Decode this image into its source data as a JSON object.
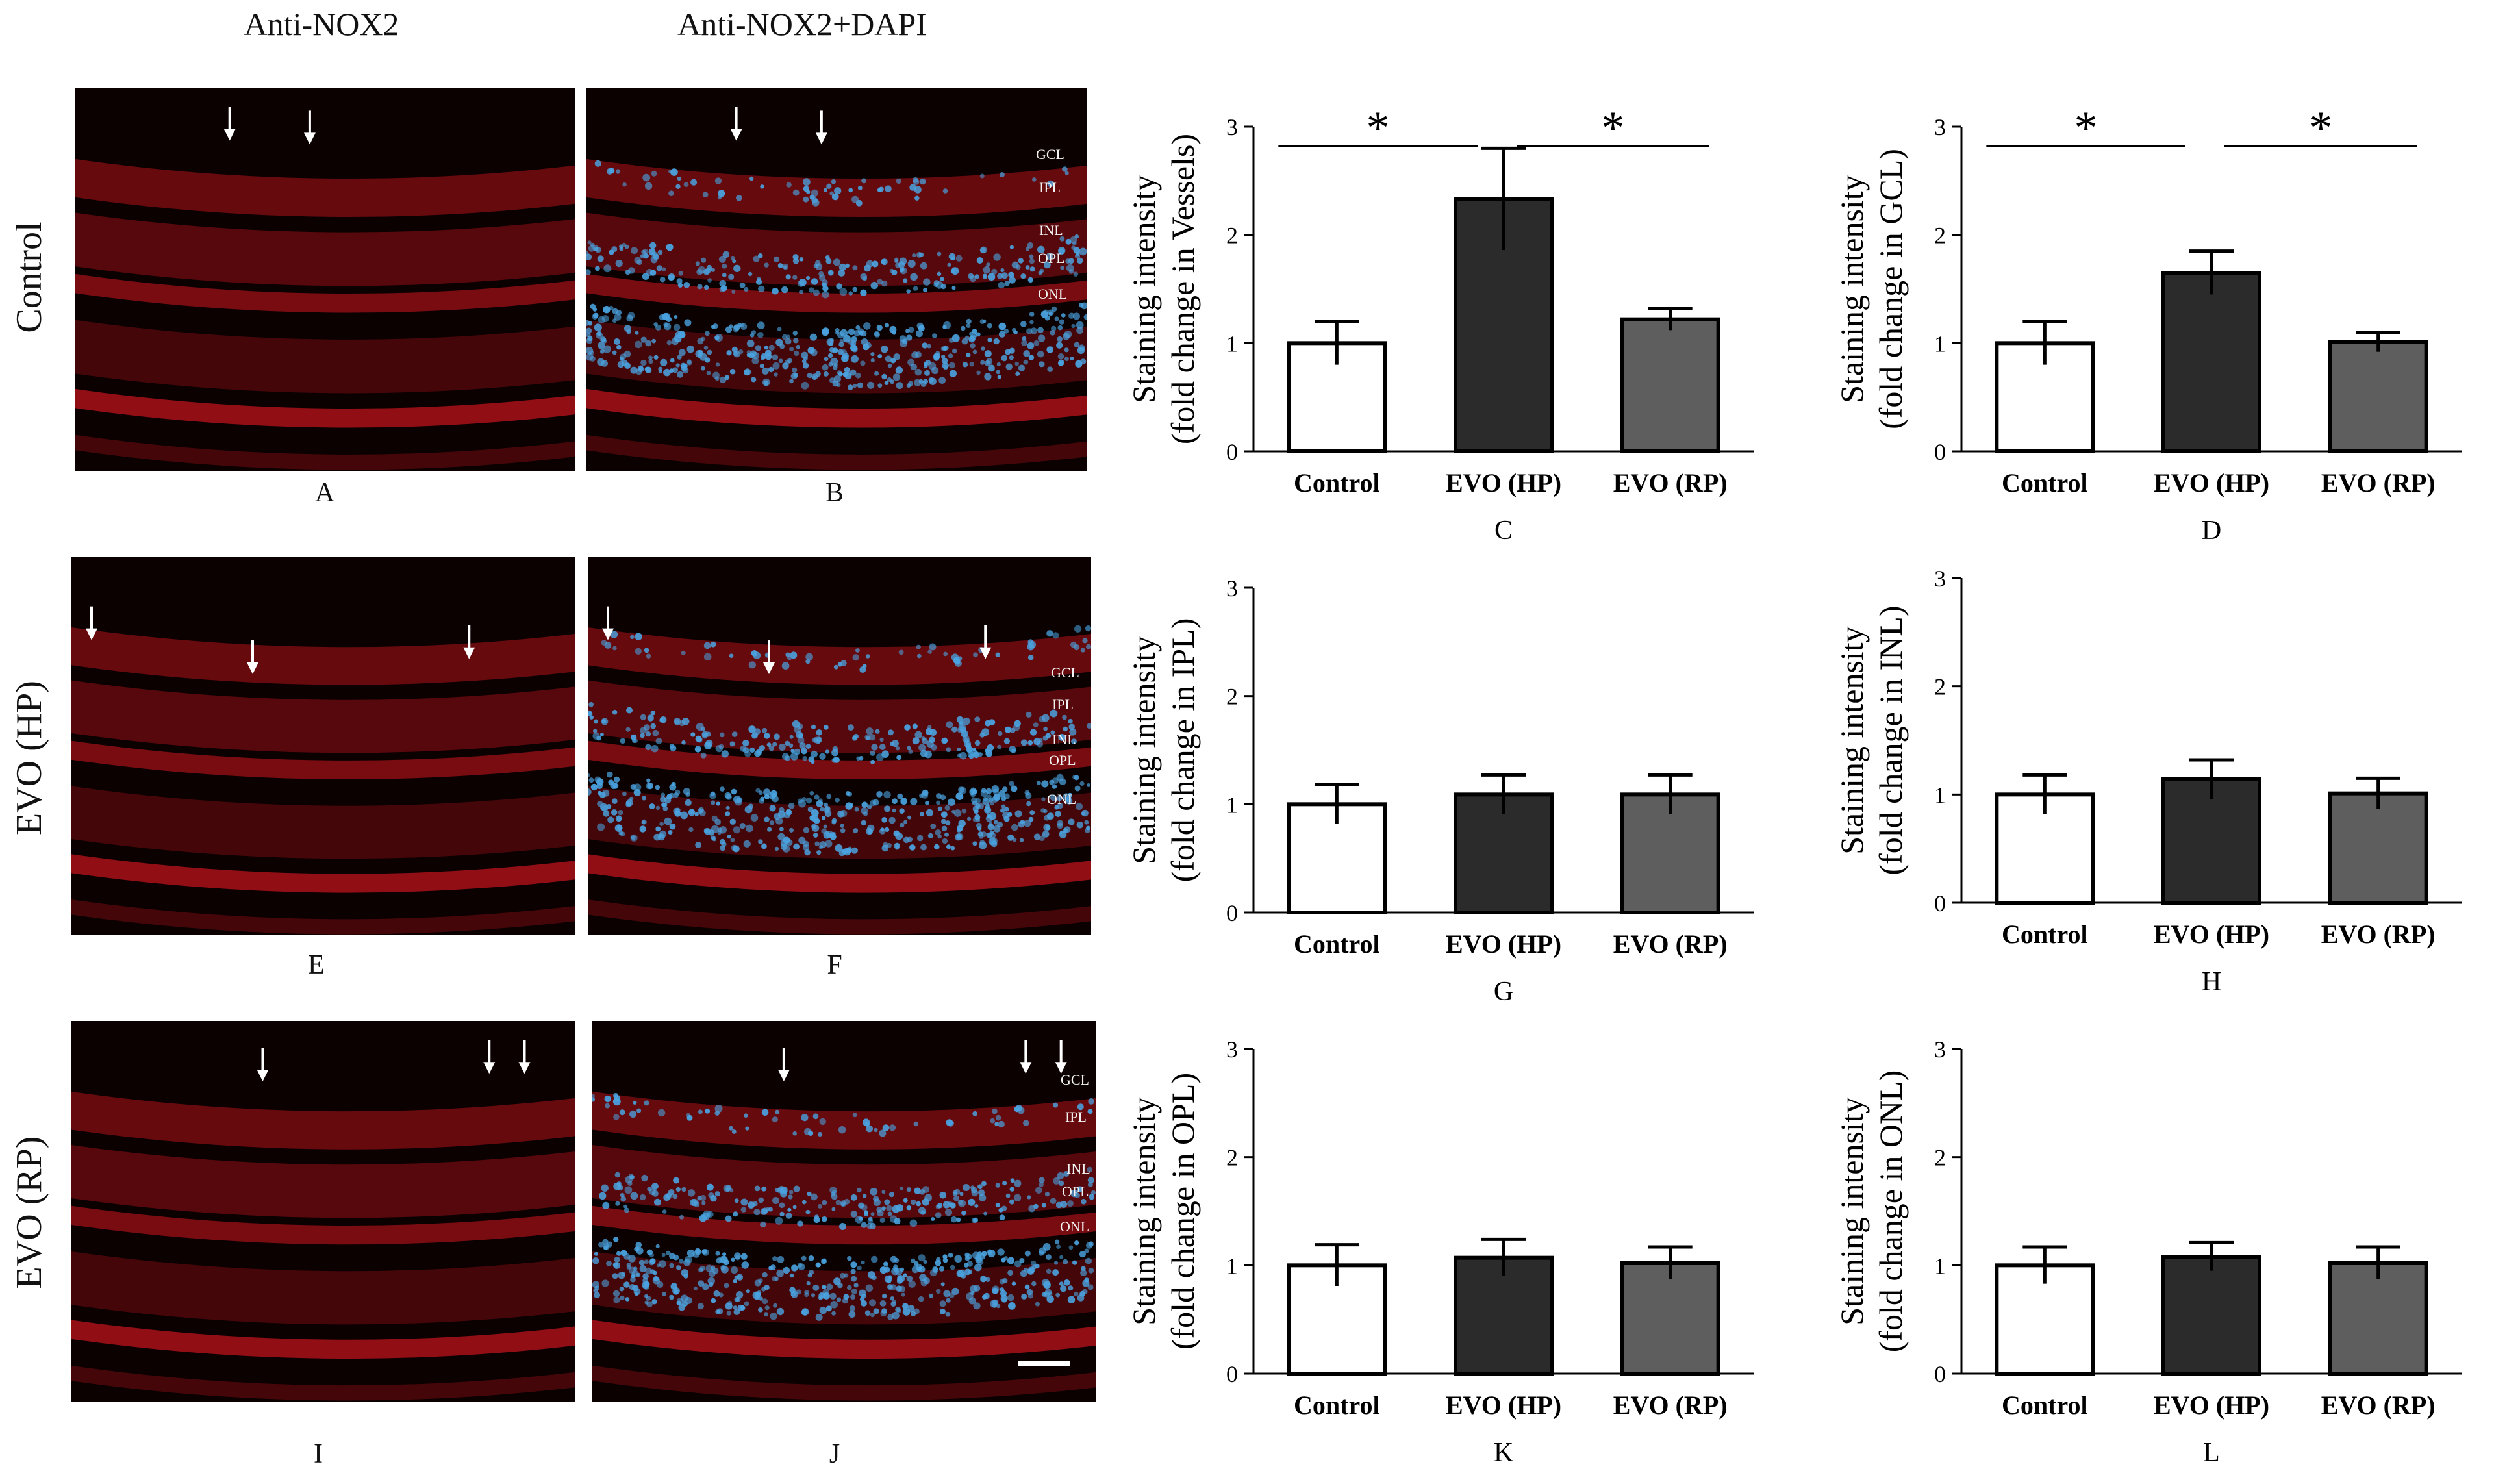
{
  "column_headers": [
    "Anti-NOX2",
    "Anti-NOX2+DAPI"
  ],
  "row_labels": [
    "Control",
    "EVO (HP)",
    "EVO (RP)"
  ],
  "micro_panels": [
    {
      "letter": "A",
      "dapi": false
    },
    {
      "letter": "B",
      "dapi": true
    },
    {
      "letter": "E",
      "dapi": false
    },
    {
      "letter": "F",
      "dapi": true
    },
    {
      "letter": "I",
      "dapi": false
    },
    {
      "letter": "J",
      "dapi": true
    }
  ],
  "layer_labels": [
    "GCL",
    "IPL",
    "INL",
    "OPL",
    "ONL"
  ],
  "colors": {
    "control_bar": "#ffffff",
    "hp_bar": "#2b2b2b",
    "rp_bar": "#5e5e5e",
    "nox2_red": "#b3121a",
    "dapi_blue": "#4aa3e0"
  },
  "chart_data": [
    {
      "type": "bar",
      "letter": "C",
      "categories": [
        "Control",
        "EVO (HP)",
        "EVO (RP)"
      ],
      "values": [
        1.0,
        2.33,
        1.22
      ],
      "errors": [
        0.2,
        0.47,
        0.1
      ],
      "ylabel_line1": "Staining intensity",
      "ylabel_line2": "(fold change in Vessels)",
      "ylim": [
        0,
        3
      ],
      "yticks": [
        "0",
        "1",
        "2",
        "3"
      ],
      "significance": [
        {
          "from": 0,
          "to": 1,
          "label": "*"
        },
        {
          "from": 1,
          "to": 2,
          "label": "*"
        }
      ]
    },
    {
      "type": "bar",
      "letter": "D",
      "categories": [
        "Control",
        "EVO (HP)",
        "EVO (RP)"
      ],
      "values": [
        1.0,
        1.65,
        1.01
      ],
      "errors": [
        0.2,
        0.2,
        0.09
      ],
      "ylabel_line1": "Staining intensity",
      "ylabel_line2": "(fold change in GCL)",
      "ylim": [
        0,
        3
      ],
      "yticks": [
        "0",
        "1",
        "2",
        "3"
      ],
      "significance": [
        {
          "from": 0,
          "to": 1,
          "label": "*"
        },
        {
          "from": 1,
          "to": 2,
          "label": "*"
        }
      ]
    },
    {
      "type": "bar",
      "letter": "G",
      "categories": [
        "Control",
        "EVO (HP)",
        "EVO (RP)"
      ],
      "values": [
        1.0,
        1.09,
        1.09
      ],
      "errors": [
        0.18,
        0.18,
        0.18
      ],
      "ylabel_line1": "Staining intensity",
      "ylabel_line2": "(fold change in IPL)",
      "ylim": [
        0,
        3
      ],
      "yticks": [
        "0",
        "1",
        "2",
        "3"
      ],
      "significance": []
    },
    {
      "type": "bar",
      "letter": "H",
      "categories": [
        "Control",
        "EVO (HP)",
        "EVO (RP)"
      ],
      "values": [
        1.0,
        1.14,
        1.01
      ],
      "errors": [
        0.18,
        0.18,
        0.14
      ],
      "ylabel_line1": "Staining intensity",
      "ylabel_line2": "(fold change in INL)",
      "ylim": [
        0,
        3
      ],
      "yticks": [
        "0",
        "1",
        "2",
        "3"
      ],
      "significance": []
    },
    {
      "type": "bar",
      "letter": "K",
      "categories": [
        "Control",
        "EVO (HP)",
        "EVO (RP)"
      ],
      "values": [
        1.0,
        1.07,
        1.02
      ],
      "errors": [
        0.19,
        0.17,
        0.15
      ],
      "ylabel_line1": "Staining intensity",
      "ylabel_line2": "(fold change in OPL)",
      "ylim": [
        0,
        3
      ],
      "yticks": [
        "0",
        "1",
        "2",
        "3"
      ],
      "significance": []
    },
    {
      "type": "bar",
      "letter": "L",
      "categories": [
        "Control",
        "EVO (HP)",
        "EVO (RP)"
      ],
      "values": [
        1.0,
        1.08,
        1.02
      ],
      "errors": [
        0.17,
        0.13,
        0.15
      ],
      "ylabel_line1": "Staining intensity",
      "ylabel_line2": "(fold change in ONL)",
      "ylim": [
        0,
        3
      ],
      "yticks": [
        "0",
        "1",
        "2",
        "3"
      ],
      "significance": []
    }
  ]
}
